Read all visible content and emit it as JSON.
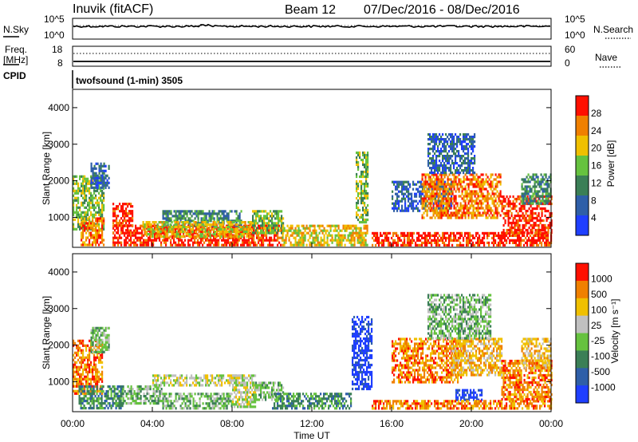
{
  "header": {
    "station": "Inuvik (fitACF)",
    "beam": "Beam 12",
    "date_range": "07/Dec/2016 - 08/Dec/2016"
  },
  "status_panels": {
    "nsky_label": "N.Sky",
    "nsearch_label": "N.Search",
    "freq_label_line1": "Freq.",
    "freq_label_line2": "[MHz]",
    "nave_label": "Nave",
    "cpid_label": "CPID",
    "left_ticks_top": [
      "10^5",
      "10^0"
    ],
    "right_ticks_top": [
      "10^5",
      "10^0"
    ],
    "left_ticks_freq": [
      "18",
      "8"
    ],
    "right_ticks_nave": [
      "60",
      "0"
    ],
    "cpid_text": "twofsound (1-min) 3505"
  },
  "x_axis": {
    "label": "Time UT",
    "ticks": [
      "00:00",
      "04:00",
      "08:00",
      "12:00",
      "16:00",
      "20:00",
      "00:00"
    ]
  },
  "chart_data": [
    {
      "type": "heatmap",
      "id": "power",
      "ylabel": "Slant Range [km]",
      "yticks": [
        1000,
        2000,
        3000,
        4000
      ],
      "ylim": [
        180,
        4500
      ],
      "xlim_hours": [
        0,
        24
      ],
      "colorbar_label": "Power [dB]",
      "colorbar_ticks": [
        "28",
        "24",
        "20",
        "16",
        "12",
        "8",
        "4"
      ],
      "colors": [
        "#1f3fff",
        "#2f5fa8",
        "#3b7f56",
        "#66c23f",
        "#f0c000",
        "#f08000",
        "#ff1000"
      ],
      "regions": [
        {
          "start_h": 0.0,
          "end_h": 1.6,
          "r1": 700,
          "r2": 2150,
          "level": 3
        },
        {
          "start_h": 0.9,
          "end_h": 1.8,
          "r1": 1800,
          "r2": 2500,
          "level": 1
        },
        {
          "start_h": 0.4,
          "end_h": 1.6,
          "r1": 250,
          "r2": 1000,
          "level": 5
        },
        {
          "start_h": 2.0,
          "end_h": 10.5,
          "r1": 250,
          "r2": 800,
          "level": 6
        },
        {
          "start_h": 2.0,
          "end_h": 3.0,
          "r1": 600,
          "r2": 1400,
          "level": 6
        },
        {
          "start_h": 4.5,
          "end_h": 8.5,
          "r1": 800,
          "r2": 1200,
          "level": 2
        },
        {
          "start_h": 3.5,
          "end_h": 9.0,
          "r1": 500,
          "r2": 900,
          "level": 4
        },
        {
          "start_h": 9.0,
          "end_h": 10.6,
          "r1": 600,
          "r2": 1200,
          "level": 3
        },
        {
          "start_h": 10.5,
          "end_h": 14.8,
          "r1": 250,
          "r2": 800,
          "level": 4
        },
        {
          "start_h": 14.2,
          "end_h": 14.8,
          "r1": 900,
          "r2": 2800,
          "level": 3
        },
        {
          "start_h": 16.0,
          "end_h": 19.0,
          "r1": 1200,
          "r2": 2000,
          "level": 1
        },
        {
          "start_h": 17.5,
          "end_h": 21.5,
          "r1": 1000,
          "r2": 2200,
          "level": 5
        },
        {
          "start_h": 17.8,
          "end_h": 20.2,
          "r1": 2200,
          "r2": 3300,
          "level": 1
        },
        {
          "start_h": 15.0,
          "end_h": 24.0,
          "r1": 250,
          "r2": 600,
          "level": 6
        },
        {
          "start_h": 21.5,
          "end_h": 24.0,
          "r1": 600,
          "r2": 1600,
          "level": 6
        },
        {
          "start_h": 22.5,
          "end_h": 24.0,
          "r1": 1400,
          "r2": 2200,
          "level": 2
        }
      ]
    },
    {
      "type": "heatmap",
      "id": "velocity",
      "ylabel": "Slant Range [km]",
      "yticks": [
        1000,
        2000,
        3000,
        4000
      ],
      "ylim": [
        180,
        4500
      ],
      "xlim_hours": [
        0,
        24
      ],
      "colorbar_label": "Velocity [m s⁻¹]",
      "colorbar_ticks": [
        "1000",
        "500",
        "100",
        "25",
        "-25",
        "-100",
        "-500",
        "-1000"
      ],
      "colors": [
        "#1f3fff",
        "#2f5fa8",
        "#3b7f56",
        "#66c23f",
        "#c0c0c0",
        "#f0c000",
        "#f08000",
        "#ff1000"
      ],
      "regions": [
        {
          "start_h": 0.0,
          "end_h": 1.5,
          "r1": 700,
          "r2": 2150,
          "level": 6
        },
        {
          "start_h": 0.9,
          "end_h": 1.8,
          "r1": 1800,
          "r2": 2500,
          "level": 3
        },
        {
          "start_h": 0.3,
          "end_h": 2.5,
          "r1": 250,
          "r2": 900,
          "level": 2
        },
        {
          "start_h": 2.5,
          "end_h": 4.5,
          "r1": 400,
          "r2": 900,
          "level": 3
        },
        {
          "start_h": 4.0,
          "end_h": 8.5,
          "r1": 900,
          "r2": 1200,
          "level": 4
        },
        {
          "start_h": 4.5,
          "end_h": 8.0,
          "r1": 250,
          "r2": 700,
          "level": 3
        },
        {
          "start_h": 8.0,
          "end_h": 9.2,
          "r1": 300,
          "r2": 1200,
          "level": 4
        },
        {
          "start_h": 9.0,
          "end_h": 10.6,
          "r1": 500,
          "r2": 1000,
          "level": 3
        },
        {
          "start_h": 10.0,
          "end_h": 14.0,
          "r1": 250,
          "r2": 700,
          "level": 2
        },
        {
          "start_h": 14.0,
          "end_h": 15.0,
          "r1": 800,
          "r2": 2800,
          "level": 0
        },
        {
          "start_h": 16.0,
          "end_h": 19.5,
          "r1": 1000,
          "r2": 2200,
          "level": 6
        },
        {
          "start_h": 19.0,
          "end_h": 21.5,
          "r1": 1200,
          "r2": 2200,
          "level": 5
        },
        {
          "start_h": 17.8,
          "end_h": 21.0,
          "r1": 2200,
          "r2": 3400,
          "level": 3
        },
        {
          "start_h": 19.2,
          "end_h": 20.5,
          "r1": 500,
          "r2": 800,
          "level": 0
        },
        {
          "start_h": 15.0,
          "end_h": 24.0,
          "r1": 250,
          "r2": 500,
          "level": 6
        },
        {
          "start_h": 21.5,
          "end_h": 24.0,
          "r1": 500,
          "r2": 1600,
          "level": 6
        },
        {
          "start_h": 22.5,
          "end_h": 24.0,
          "r1": 1400,
          "r2": 2200,
          "level": 5
        }
      ]
    }
  ]
}
